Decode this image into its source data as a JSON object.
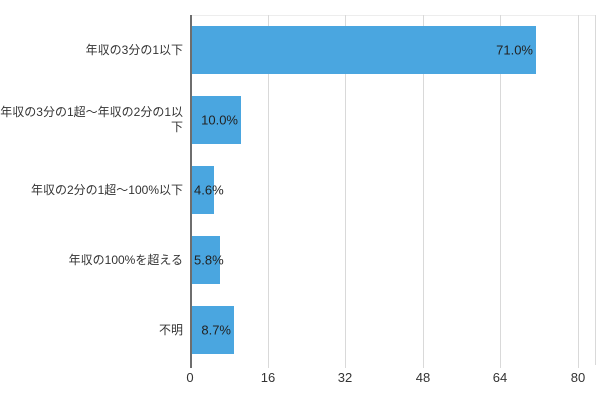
{
  "chart_data": {
    "type": "bar",
    "orientation": "horizontal",
    "title": "",
    "xlabel": "",
    "ylabel": "",
    "categories": [
      "年収の3分の1以下",
      "年収の3分の1超〜年収の2分の1以下",
      "年収の2分の1超〜100%以下",
      "年収の100%を超える",
      "不明"
    ],
    "values": [
      71.0,
      10.0,
      4.6,
      5.8,
      8.7
    ],
    "value_labels": [
      "71.0%",
      "10.0%",
      "4.6%",
      "5.8%",
      "8.7%"
    ],
    "x_ticks": [
      0,
      16,
      32,
      48,
      64,
      80
    ],
    "xlim": [
      0,
      83.7
    ],
    "grid": true,
    "legend": "none",
    "colors": {
      "bar": "#4aa6e0",
      "grid_line": "#d9d9d9",
      "axis_line": "#6e6e6e",
      "text": "#333333",
      "value_text": "#222222",
      "background": "#ffffff"
    }
  }
}
